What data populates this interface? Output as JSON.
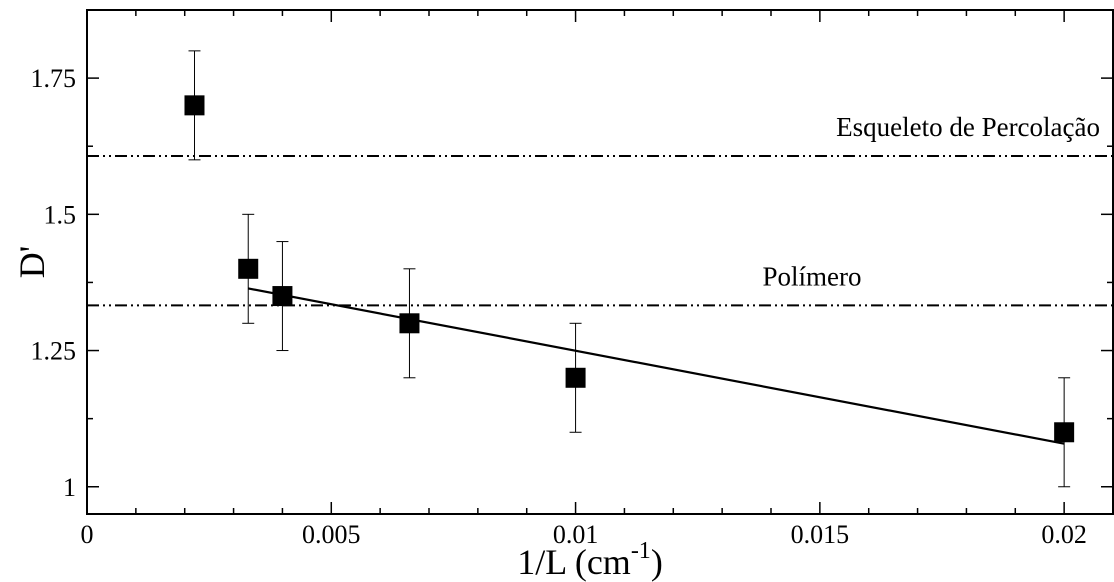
{
  "chart_data": {
    "type": "scatter",
    "xlabel": "1/L (cm",
    "xlabel_sup": "-1",
    "xlabel_close": ")",
    "ylabel": "D'",
    "xlim": [
      0,
      0.021
    ],
    "ylim": [
      0.95,
      1.875
    ],
    "x_ticks": [
      {
        "value": 0,
        "label": "0"
      },
      {
        "value": 0.005,
        "label": "0.005"
      },
      {
        "value": 0.01,
        "label": "0.01"
      },
      {
        "value": 0.015,
        "label": "0.015"
      },
      {
        "value": 0.02,
        "label": "0.02"
      }
    ],
    "y_ticks": [
      {
        "value": 1,
        "label": "1"
      },
      {
        "value": 1.25,
        "label": "1.25"
      },
      {
        "value": 1.5,
        "label": "1.5"
      },
      {
        "value": 1.75,
        "label": "1.75"
      }
    ],
    "series": [
      {
        "marker": "square",
        "color": "#000000",
        "points": [
          {
            "x": 0.0022,
            "y": 1.7,
            "err": 0.1
          },
          {
            "x": 0.0033,
            "y": 1.4,
            "err": 0.1
          },
          {
            "x": 0.004,
            "y": 1.35,
            "err": 0.1
          },
          {
            "x": 0.0066,
            "y": 1.3,
            "err": 0.1
          },
          {
            "x": 0.01,
            "y": 1.2,
            "err": 0.1
          },
          {
            "x": 0.02,
            "y": 1.1,
            "err": 0.1
          }
        ]
      }
    ],
    "fit_line": {
      "x": [
        0.0033,
        0.02
      ],
      "y": [
        1.364,
        1.079
      ]
    },
    "reference_lines": [
      {
        "y": 1.607,
        "label": "Esqueleto de Percolação",
        "style": "dash-dot-dot"
      },
      {
        "y": 1.333,
        "label": "Polímero",
        "style": "dash-dot-dot"
      }
    ],
    "grid": false,
    "legend": "none"
  }
}
